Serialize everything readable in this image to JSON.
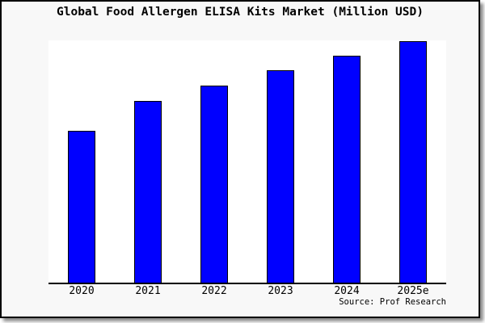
{
  "chart_data": {
    "type": "bar",
    "title": "Global Food Allergen ELISA Kits Market (Million USD)",
    "categories": [
      "2020",
      "2021",
      "2022",
      "2023",
      "2024",
      "2025e"
    ],
    "values": [
      188,
      225,
      244,
      263,
      281,
      299
    ],
    "values_pct_of_max": [
      62.9,
      75.3,
      81.6,
      88.0,
      94.0,
      100.0
    ],
    "ylim": [
      0,
      300
    ],
    "xlabel": "",
    "ylabel": "",
    "value_unit": "Million USD",
    "y_axis_ticks_visible": false,
    "gridlines": false,
    "legend_position": "none",
    "annotation_source": "Source: Prof Research",
    "bar_color": "#0000ff",
    "bar_border_color": "#000000"
  },
  "colors": {
    "card_background": "#f8f8f8",
    "plot_background": "#ffffff",
    "axis_line": "#000000",
    "card_border": "#000000",
    "text": "#000000"
  }
}
